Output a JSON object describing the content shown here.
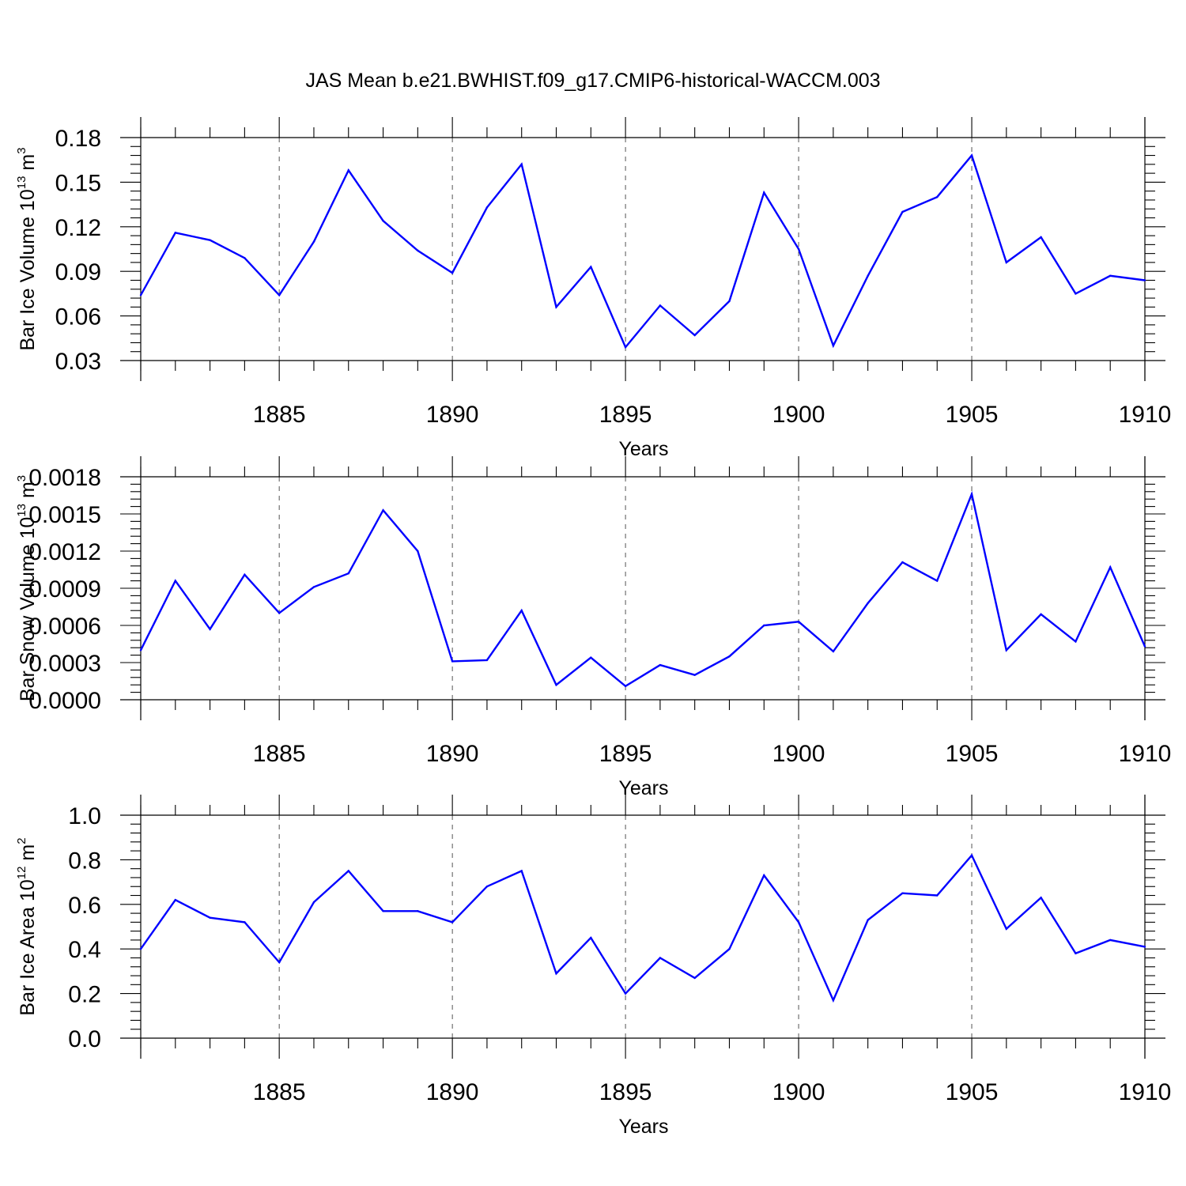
{
  "figure": {
    "title": "JAS Mean b.e21.BWHIST.f09_g17.CMIP6-historical-WACCM.003"
  },
  "colors": {
    "line": "#0000ff",
    "axes": "#000000",
    "background": "#ffffff"
  },
  "chart_data": [
    {
      "type": "line",
      "xlabel": "Years",
      "ylabel": {
        "text": "Bar Ice Volume 10",
        "sup1": "13",
        "unit": " m",
        "sup2": "3"
      },
      "x": [
        1881,
        1882,
        1883,
        1884,
        1885,
        1886,
        1887,
        1888,
        1889,
        1890,
        1891,
        1892,
        1893,
        1894,
        1895,
        1896,
        1897,
        1898,
        1899,
        1900,
        1901,
        1902,
        1903,
        1904,
        1905,
        1906,
        1907,
        1908,
        1909,
        1910
      ],
      "xlim": [
        1881,
        1910
      ],
      "xticks": [
        1885,
        1890,
        1895,
        1900,
        1905,
        1910
      ],
      "ylim": [
        0.03,
        0.18
      ],
      "yticks": [
        0.03,
        0.06,
        0.09,
        0.12,
        0.15,
        0.18
      ],
      "ytick_labels": [
        "0.03",
        "0.06",
        "0.09",
        "0.12",
        "0.15",
        "0.18"
      ],
      "grid": "vertical dashed at major x ticks",
      "series": [
        {
          "values": [
            0.074,
            0.116,
            0.111,
            0.099,
            0.074,
            0.11,
            0.158,
            0.124,
            0.104,
            0.089,
            0.133,
            0.162,
            0.066,
            0.093,
            0.039,
            0.067,
            0.047,
            0.07,
            0.143,
            0.105,
            0.04,
            0.087,
            0.13,
            0.14,
            0.168,
            0.096,
            0.113,
            0.075,
            0.087,
            0.084
          ]
        }
      ]
    },
    {
      "type": "line",
      "xlabel": "Years",
      "ylabel": {
        "text": "Bar Snow Volume 10",
        "sup1": "13",
        "unit": " m",
        "sup2": "3"
      },
      "x": [
        1881,
        1882,
        1883,
        1884,
        1885,
        1886,
        1887,
        1888,
        1889,
        1890,
        1891,
        1892,
        1893,
        1894,
        1895,
        1896,
        1897,
        1898,
        1899,
        1900,
        1901,
        1902,
        1903,
        1904,
        1905,
        1906,
        1907,
        1908,
        1909,
        1910
      ],
      "xlim": [
        1881,
        1910
      ],
      "xticks": [
        1885,
        1890,
        1895,
        1900,
        1905,
        1910
      ],
      "ylim": [
        0.0,
        0.0018
      ],
      "yticks": [
        0.0,
        0.0003,
        0.0006,
        0.0009,
        0.0012,
        0.0015,
        0.0018
      ],
      "ytick_labels": [
        "0.0000",
        "0.0003",
        "0.0006",
        "0.0009",
        "0.0012",
        "0.0015",
        "0.0018"
      ],
      "grid": "vertical dashed at major x ticks",
      "series": [
        {
          "values": [
            0.0004,
            0.00096,
            0.00057,
            0.00101,
            0.0007,
            0.00091,
            0.00102,
            0.00153,
            0.0012,
            0.00031,
            0.00032,
            0.00072,
            0.00012,
            0.00034,
            0.00011,
            0.00028,
            0.0002,
            0.00035,
            0.0006,
            0.00063,
            0.00039,
            0.00078,
            0.00111,
            0.00096,
            0.00166,
            0.0004,
            0.00069,
            0.00047,
            0.00107,
            0.00043
          ]
        }
      ]
    },
    {
      "type": "line",
      "xlabel": "Years",
      "ylabel": {
        "text": "Bar Ice Area 10",
        "sup1": "12",
        "unit": " m",
        "sup2": "2"
      },
      "x": [
        1881,
        1882,
        1883,
        1884,
        1885,
        1886,
        1887,
        1888,
        1889,
        1890,
        1891,
        1892,
        1893,
        1894,
        1895,
        1896,
        1897,
        1898,
        1899,
        1900,
        1901,
        1902,
        1903,
        1904,
        1905,
        1906,
        1907,
        1908,
        1909,
        1910
      ],
      "xlim": [
        1881,
        1910
      ],
      "xticks": [
        1885,
        1890,
        1895,
        1900,
        1905,
        1910
      ],
      "ylim": [
        0.0,
        1.0
      ],
      "yticks": [
        0.0,
        0.2,
        0.4,
        0.6,
        0.8,
        1.0
      ],
      "ytick_labels": [
        "0.0",
        "0.2",
        "0.4",
        "0.6",
        "0.8",
        "1.0"
      ],
      "grid": "vertical dashed at major x ticks",
      "series": [
        {
          "values": [
            0.4,
            0.62,
            0.54,
            0.52,
            0.34,
            0.61,
            0.75,
            0.57,
            0.57,
            0.52,
            0.68,
            0.75,
            0.29,
            0.45,
            0.2,
            0.36,
            0.27,
            0.4,
            0.73,
            0.52,
            0.17,
            0.53,
            0.65,
            0.64,
            0.82,
            0.49,
            0.63,
            0.38,
            0.44,
            0.41
          ]
        }
      ]
    }
  ]
}
